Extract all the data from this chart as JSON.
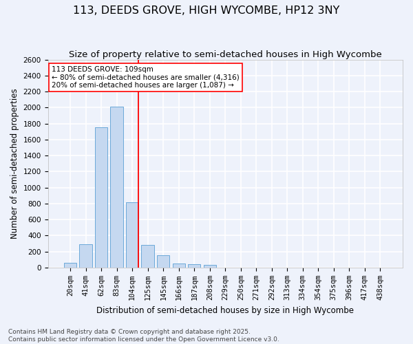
{
  "title": "113, DEEDS GROVE, HIGH WYCOMBE, HP12 3NY",
  "subtitle": "Size of property relative to semi-detached houses in High Wycombe",
  "xlabel": "Distribution of semi-detached houses by size in High Wycombe",
  "ylabel": "Number of semi-detached properties",
  "categories": [
    "20sqm",
    "41sqm",
    "62sqm",
    "83sqm",
    "104sqm",
    "125sqm",
    "145sqm",
    "166sqm",
    "187sqm",
    "208sqm",
    "229sqm",
    "250sqm",
    "271sqm",
    "292sqm",
    "313sqm",
    "334sqm",
    "354sqm",
    "375sqm",
    "396sqm",
    "417sqm",
    "438sqm"
  ],
  "values": [
    60,
    295,
    1755,
    2010,
    820,
    285,
    155,
    55,
    45,
    30,
    0,
    0,
    0,
    0,
    0,
    0,
    0,
    0,
    0,
    0,
    0
  ],
  "bar_color": "#c5d8f0",
  "bar_edge_color": "#5a9fd4",
  "vline_color": "red",
  "annotation_text": "113 DEEDS GROVE: 109sqm\n← 80% of semi-detached houses are smaller (4,316)\n20% of semi-detached houses are larger (1,087) →",
  "annotation_box_color": "white",
  "annotation_box_edge_color": "red",
  "ylim": [
    0,
    2600
  ],
  "yticks": [
    0,
    200,
    400,
    600,
    800,
    1000,
    1200,
    1400,
    1600,
    1800,
    2000,
    2200,
    2400,
    2600
  ],
  "footer_line1": "Contains HM Land Registry data © Crown copyright and database right 2025.",
  "footer_line2": "Contains public sector information licensed under the Open Government Licence v3.0.",
  "bg_color": "#eef2fb",
  "grid_color": "white",
  "title_fontsize": 11.5,
  "subtitle_fontsize": 9.5,
  "axis_label_fontsize": 8.5,
  "tick_fontsize": 7.5,
  "annotation_fontsize": 7.5,
  "footer_fontsize": 6.5
}
